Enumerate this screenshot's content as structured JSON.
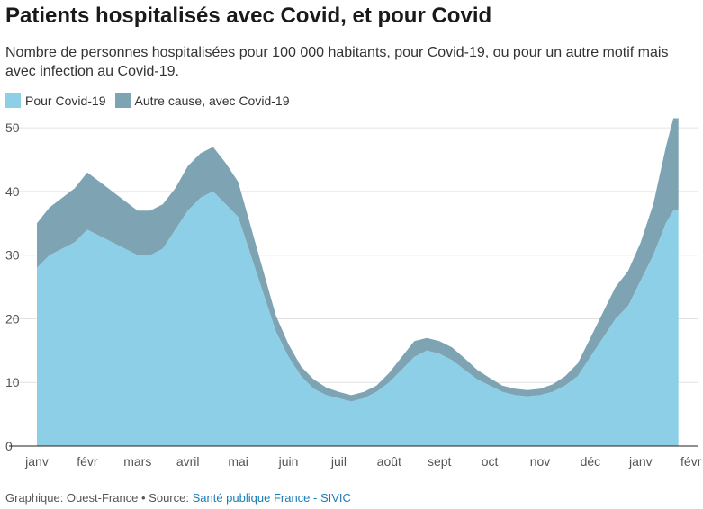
{
  "title": "Patients hospitalisés avec Covid, et pour Covid",
  "subtitle": "Nombre de personnes hospitalisées pour 100 000 habitants, pour Covid-19, ou pour un autre motif mais avec infection au Covid-19.",
  "footer": {
    "credit": "Graphique: Ouest-France • Source: ",
    "source": "Santé publique France - SIVIC"
  },
  "colors": {
    "pour_covid": "#8dcfe6",
    "autre_cause": "#7ea4b4",
    "grid": "#e2e2e2",
    "axis": "#222222"
  },
  "chart_data": {
    "type": "area",
    "stacked": true,
    "ylim": [
      0,
      52
    ],
    "yticks": [
      0,
      10,
      20,
      30,
      40,
      50
    ],
    "grid": true,
    "legend_position": "top-left",
    "xlim": [
      0,
      12.75
    ],
    "month_labels": [
      "janv",
      "févr",
      "mars",
      "avril",
      "mai",
      "juin",
      "juil",
      "août",
      "sept",
      "oct",
      "nov",
      "déc",
      "janv",
      "févr"
    ],
    "month_positions": [
      0,
      1,
      2,
      3,
      4,
      5,
      6,
      7,
      8,
      9,
      10,
      11,
      12,
      13
    ],
    "series": [
      {
        "name": "Pour Covid-19",
        "color": "#8dcfe6",
        "x": [
          0,
          0.25,
          0.5,
          0.75,
          1,
          1.25,
          1.5,
          1.75,
          2,
          2.25,
          2.5,
          2.75,
          3,
          3.25,
          3.5,
          3.75,
          4,
          4.25,
          4.5,
          4.75,
          5,
          5.25,
          5.5,
          5.75,
          6,
          6.25,
          6.5,
          6.75,
          7,
          7.25,
          7.5,
          7.75,
          8,
          8.25,
          8.5,
          8.75,
          9,
          9.25,
          9.5,
          9.75,
          10,
          10.25,
          10.5,
          10.75,
          11,
          11.25,
          11.5,
          11.75,
          12,
          12.25,
          12.5,
          12.65,
          12.75
        ],
        "values": [
          28,
          30,
          31,
          32,
          34,
          33,
          32,
          31,
          30,
          30,
          31,
          34,
          37,
          39,
          40,
          38,
          36,
          30,
          24,
          18,
          14,
          11,
          9,
          8,
          7.5,
          7,
          7.5,
          8.5,
          10,
          12,
          14,
          15,
          14.5,
          13.5,
          12,
          10.5,
          9.5,
          8.5,
          8,
          7.8,
          8,
          8.5,
          9.5,
          11,
          14,
          17,
          20,
          22,
          26,
          30,
          35,
          37,
          37
        ]
      },
      {
        "name": "Autre cause, avec Covid-19",
        "color": "#7ea4b4",
        "x": [
          0,
          0.25,
          0.5,
          0.75,
          1,
          1.25,
          1.5,
          1.75,
          2,
          2.25,
          2.5,
          2.75,
          3,
          3.25,
          3.5,
          3.75,
          4,
          4.25,
          4.5,
          4.75,
          5,
          5.25,
          5.5,
          5.75,
          6,
          6.25,
          6.5,
          6.75,
          7,
          7.25,
          7.5,
          7.75,
          8,
          8.25,
          8.5,
          8.75,
          9,
          9.25,
          9.5,
          9.75,
          10,
          10.25,
          10.5,
          10.75,
          11,
          11.25,
          11.5,
          11.75,
          12,
          12.25,
          12.5,
          12.65,
          12.75
        ],
        "values": [
          7,
          7.5,
          8,
          8.5,
          9,
          8.5,
          8,
          7.5,
          7,
          7,
          7,
          6.5,
          7,
          7,
          7,
          6.5,
          5.5,
          4.5,
          3.5,
          2.5,
          2,
          1.5,
          1.5,
          1.2,
          1,
          1,
          1,
          1,
          1.5,
          2,
          2.5,
          2,
          2,
          2,
          1.8,
          1.5,
          1.2,
          1,
          1,
          1,
          1,
          1.2,
          1.5,
          2,
          3,
          4,
          5,
          5.5,
          6,
          8,
          12,
          14.5,
          14.5
        ]
      }
    ]
  }
}
